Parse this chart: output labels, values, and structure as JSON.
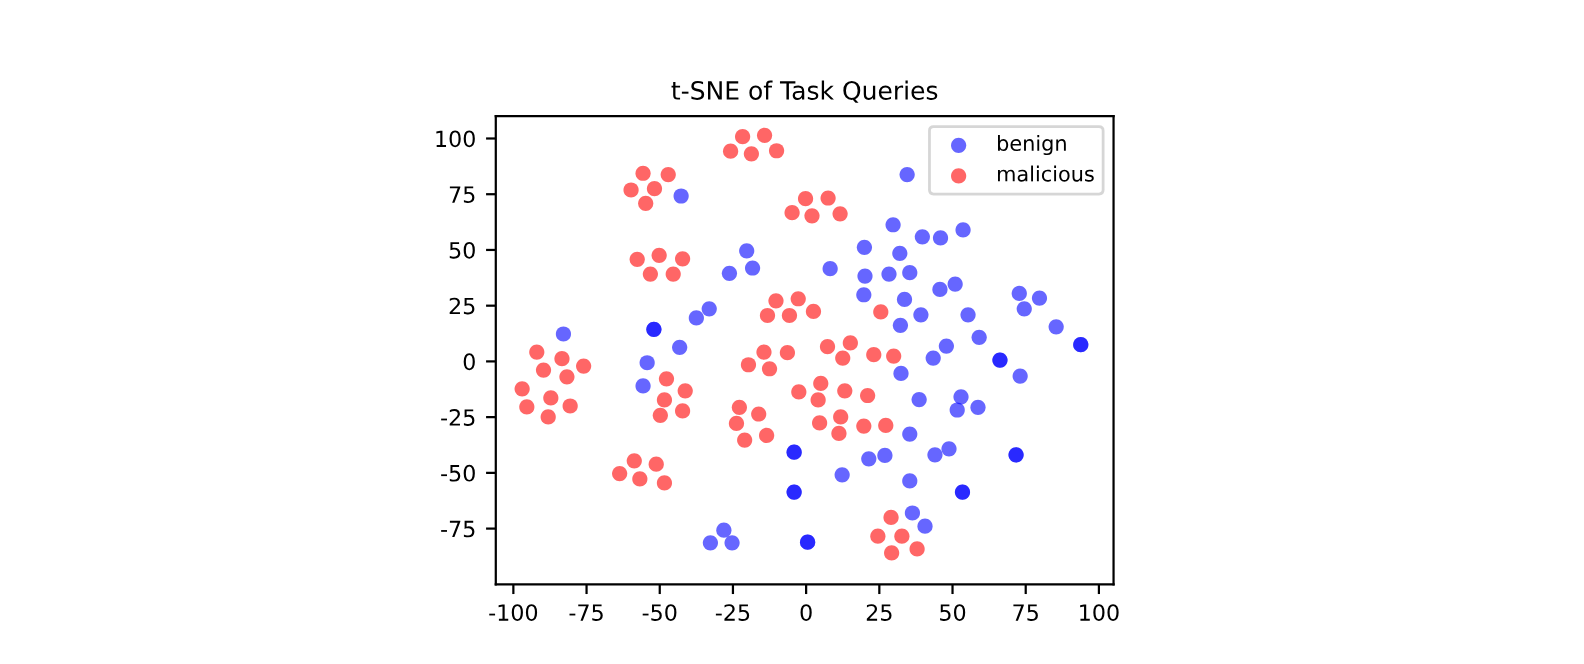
{
  "chart_data": {
    "type": "scatter",
    "title": "t-SNE of Task Queries",
    "xlim": [
      -106,
      105
    ],
    "ylim": [
      -100,
      110
    ],
    "xticks": [
      -100,
      -75,
      -50,
      -25,
      0,
      25,
      50,
      75,
      100
    ],
    "yticks": [
      -75,
      -50,
      -25,
      0,
      25,
      50,
      75,
      100
    ],
    "grid": false,
    "legend": "top right",
    "marker": "circle",
    "series": [
      {
        "name": "benign",
        "color": "#0000ff",
        "x": [
          -42.7,
          -26.2,
          -20.3,
          -18.3,
          -33.1,
          -37.5,
          -52,
          -52,
          -43.2,
          -82.9,
          -54.3,
          -55.7,
          -32.7,
          -28.1,
          -25.3,
          -4.1,
          -4.1,
          -4.1,
          -4.1,
          34.5,
          29.7,
          39.7,
          45.9,
          53.6,
          19.9,
          32,
          8.2,
          20.1,
          28.3,
          35.4,
          19.7,
          33.6,
          45.7,
          50.9,
          39.2,
          32.2,
          55.3,
          59.1,
          72.8,
          74.5,
          79.7,
          85.4,
          93.8,
          93.8,
          66.2,
          66.2,
          47.9,
          43.4,
          32.4,
          73.1,
          52.9,
          38.6,
          51.6,
          58.7,
          35.4,
          21.4,
          26.9,
          44,
          48.8,
          71.7,
          71.7,
          12.3,
          53.4,
          53.4,
          35.4,
          36.3,
          40.6,
          0.5,
          0.5
        ],
        "values": [
          74.2,
          39.5,
          49.6,
          41.9,
          23.6,
          19.5,
          14.4,
          14.4,
          6.3,
          12.3,
          -0.6,
          -11,
          -81.4,
          -75.7,
          -81.4,
          -40.7,
          -40.7,
          -58.6,
          -58.6,
          83.8,
          61.3,
          55.9,
          55.4,
          59,
          51.2,
          48.5,
          41.6,
          38.3,
          39.2,
          39.8,
          29.9,
          27.8,
          32.3,
          34.7,
          20.9,
          16.2,
          20.9,
          10.8,
          30.5,
          23.6,
          28.4,
          15.5,
          7.5,
          7.5,
          0.6,
          0.6,
          6.9,
          1.5,
          -5.4,
          -6.6,
          -15.9,
          -17.1,
          -21.8,
          -20.6,
          -32.6,
          -43.7,
          -42.2,
          -41.9,
          -39.2,
          -41.9,
          -41.9,
          -50.9,
          -58.6,
          -58.6,
          -53.6,
          -68,
          -73.9,
          -81.1,
          -81.1
        ]
      },
      {
        "name": "malicious",
        "color": "#ff0000",
        "x": [
          -25.8,
          -21.7,
          -18.7,
          -14.2,
          -10.1,
          -59.8,
          -55.7,
          -51.8,
          -54.8,
          -47.1,
          -57.7,
          -53.2,
          -50.2,
          -45.4,
          -42.2,
          -92,
          -83.4,
          -76,
          -89.7,
          -81.7,
          -97,
          -87.2,
          -95.4,
          -80.6,
          -88.1,
          -47.7,
          -41.3,
          -48.4,
          -42.2,
          -49.8,
          -19.7,
          -14.4,
          -12.5,
          -6.4,
          -2.5,
          -22.8,
          -16.2,
          -23.8,
          -13.5,
          -21,
          -63.7,
          -58.7,
          -56.8,
          -51.2,
          -48.4,
          -4.8,
          -13.2,
          -10.3,
          -5.7,
          -2.7,
          -0.2,
          7.5,
          2,
          11.6,
          2.5,
          25.5,
          7.3,
          15.1,
          12.5,
          23.1,
          29.9,
          5,
          4.1,
          13.2,
          21,
          4.6,
          11.8,
          11.2,
          19.7,
          27.2,
          29,
          24.5,
          32.7,
          29.2,
          37.9
        ],
        "values": [
          94.3,
          100.8,
          93.1,
          101.4,
          94.5,
          76.9,
          84.4,
          77.5,
          70.9,
          83.8,
          45.8,
          39.2,
          47.6,
          39.2,
          46,
          4.2,
          1.2,
          -2.1,
          -3.9,
          -6.9,
          -12.3,
          -16.4,
          -20.4,
          -20,
          -24.9,
          -7.8,
          -13.2,
          -17.3,
          -22.2,
          -24.2,
          -1.5,
          4.2,
          -3.3,
          3.9,
          -13.7,
          -20.6,
          -23.6,
          -27.8,
          -33.2,
          -35.3,
          -50.3,
          -44.6,
          -52.7,
          -46.1,
          -54.5,
          66.7,
          20.6,
          27.2,
          20.6,
          28.1,
          73,
          73.3,
          65.3,
          66.2,
          22.4,
          22.2,
          6.6,
          8.3,
          1.5,
          3,
          2.4,
          -9.9,
          -17.3,
          -13.2,
          -15.3,
          -27.6,
          -24.9,
          -32.3,
          -29,
          -28.7,
          -70,
          -78.4,
          -78.4,
          -85.9,
          -84.1
        ]
      }
    ]
  }
}
